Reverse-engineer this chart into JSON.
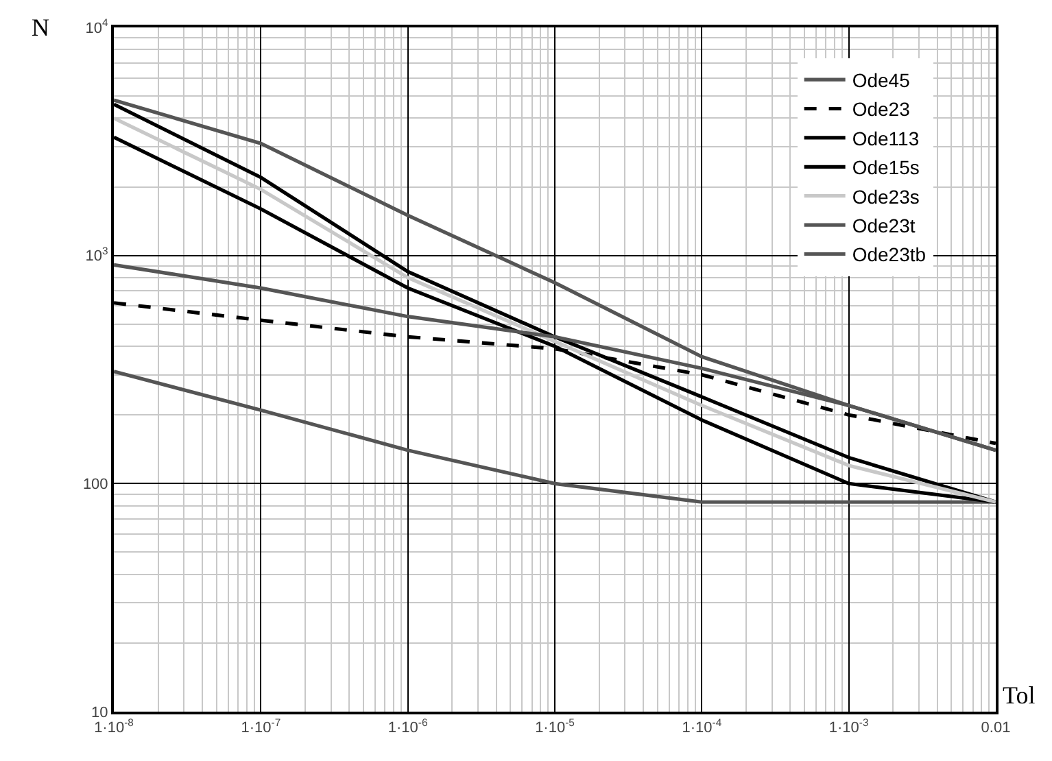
{
  "chart_data": {
    "type": "line",
    "xlabel": "Tol",
    "ylabel": "N",
    "log": "xy",
    "grid": true,
    "legend": "top right",
    "marker": "none",
    "x": [
      1e-08,
      1e-07,
      1e-06,
      1e-05,
      0.0001,
      0.001,
      0.01
    ],
    "xlim": [
      1e-08,
      0.01
    ],
    "ylim": [
      10,
      10000
    ],
    "xticks": [
      {
        "value": 1e-08,
        "label": "1·10$^{-8}$"
      },
      {
        "value": 1e-07,
        "label": "1·10$^{-7}$"
      },
      {
        "value": 1e-06,
        "label": "1·10$^{-6}$"
      },
      {
        "value": 1e-05,
        "label": "1·10$^{-5}$"
      },
      {
        "value": 0.0001,
        "label": "1·10$^{-4}$"
      },
      {
        "value": 0.001,
        "label": "1·10$^{-3}$"
      },
      0.01
    ],
    "yticks": [
      10,
      100,
      {
        "value": 1000,
        "label": "10$^{3}$"
      },
      {
        "value": 10000,
        "label": "10$^{4}$"
      }
    ],
    "series": [
      {
        "name": "Ode45",
        "color": "#555555",
        "values": [
          310,
          210,
          140,
          100,
          83,
          83,
          83
        ]
      },
      {
        "name": "Ode23",
        "color": "#000000",
        "line_style": "dashed",
        "values": [
          620,
          520,
          440,
          390,
          300,
          200,
          150
        ]
      },
      {
        "name": "Ode113",
        "color": "#000000",
        "values": [
          3300,
          1600,
          720,
          400,
          190,
          100,
          83
        ]
      },
      {
        "name": "Ode15s",
        "color": "#000000",
        "values": [
          4600,
          2200,
          850,
          440,
          240,
          130,
          83
        ]
      },
      {
        "name": "Ode23s",
        "color": "#c8c8c8",
        "values": [
          4000,
          1950,
          800,
          420,
          220,
          120,
          83
        ]
      },
      {
        "name": "Ode23t",
        "color": "#555555",
        "values": [
          910,
          720,
          540,
          440,
          320,
          220,
          140
        ]
      },
      {
        "name": "Ode23tb",
        "color": "#555555",
        "values": [
          4800,
          3100,
          1500,
          760,
          360,
          220,
          140
        ]
      }
    ]
  }
}
